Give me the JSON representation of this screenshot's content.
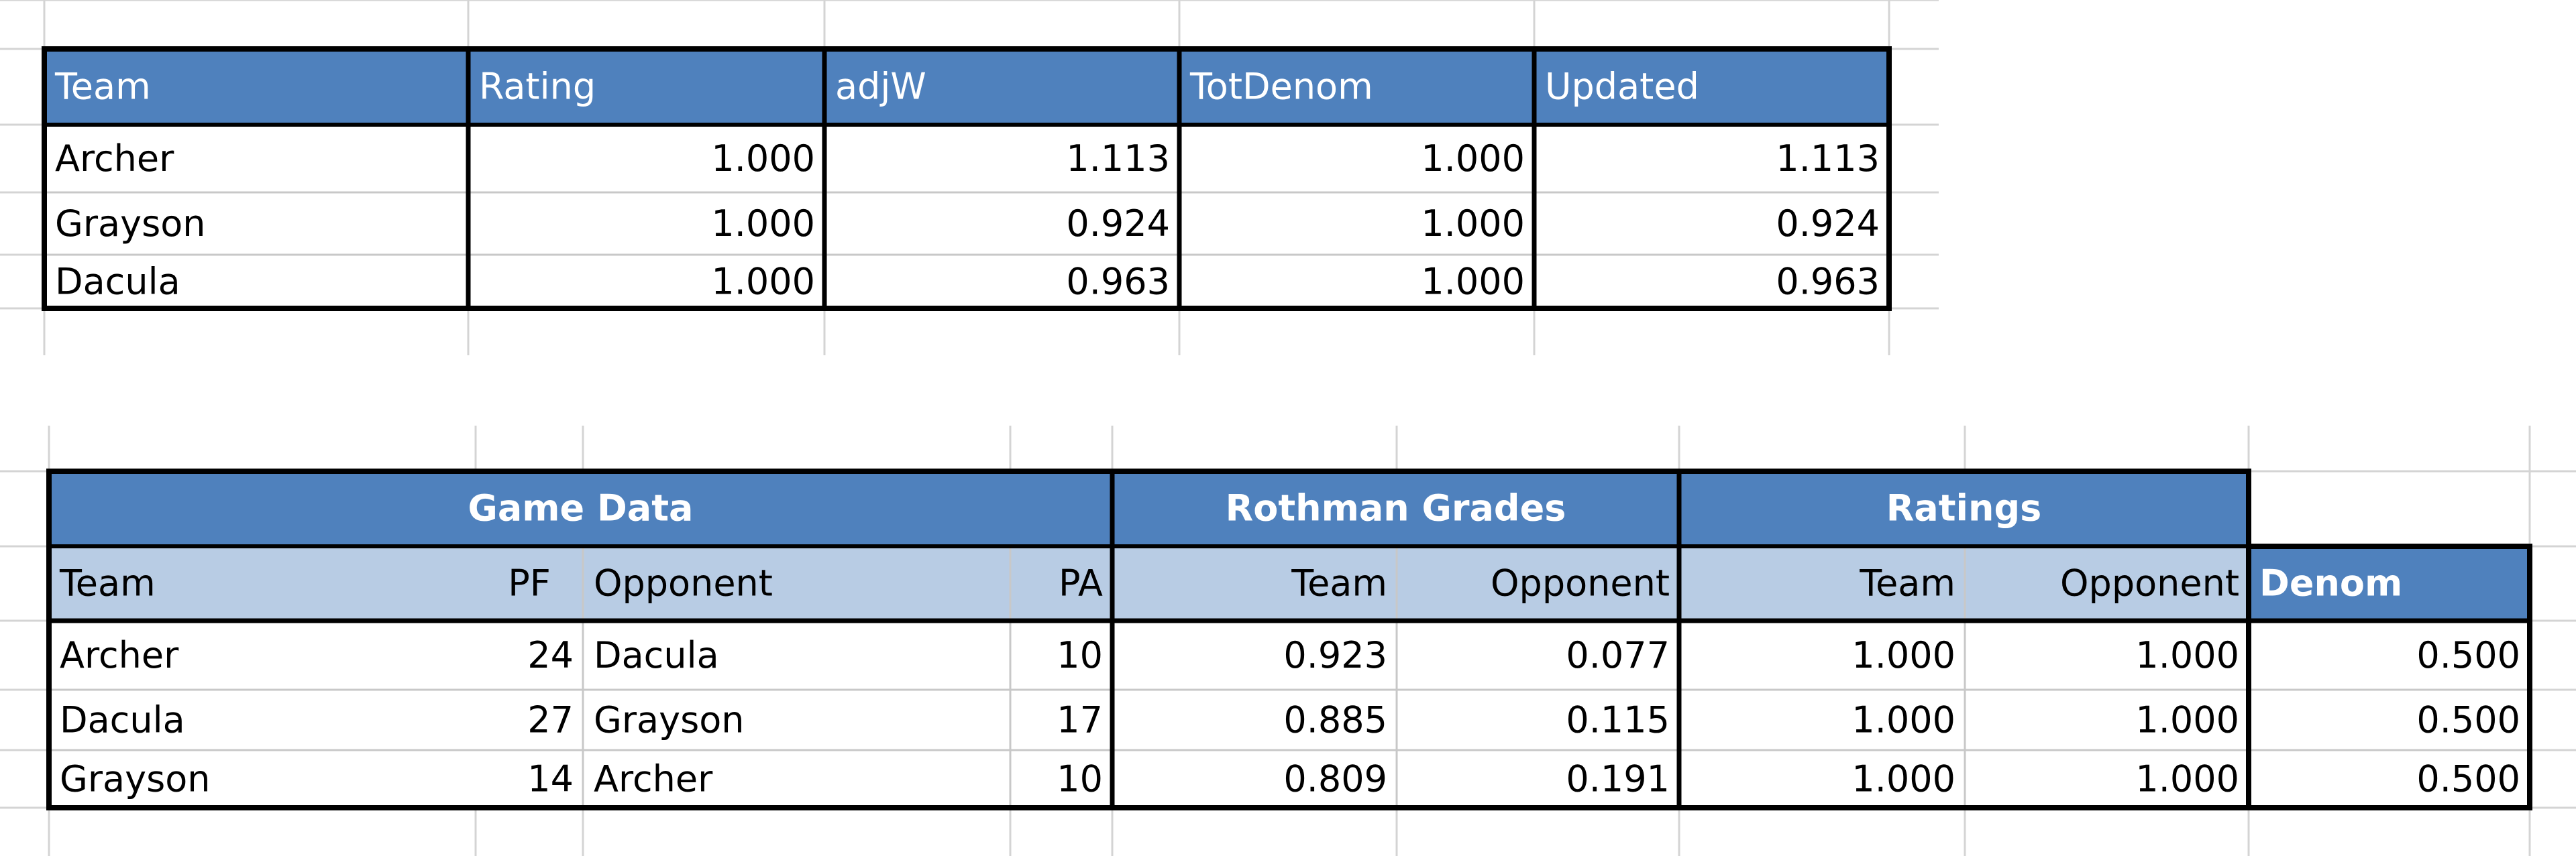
{
  "table1": {
    "columns": [
      "Team",
      "Rating",
      "adjW",
      "TotDenom",
      "Updated"
    ],
    "rows": [
      [
        "Archer",
        "1.000",
        "1.113",
        "1.000",
        "1.113"
      ],
      [
        "Grayson",
        "1.000",
        "0.924",
        "1.000",
        "0.924"
      ],
      [
        "Dacula",
        "1.000",
        "0.963",
        "1.000",
        "0.963"
      ]
    ]
  },
  "table2": {
    "groups": [
      "Game Data",
      "Rothman Grades",
      "Ratings"
    ],
    "columns": [
      "Team",
      "PF",
      "Opponent",
      "PA",
      "Team",
      "Opponent",
      "Team",
      "Opponent",
      "Denom"
    ],
    "rows": [
      [
        "Archer",
        "24",
        "Dacula",
        "10",
        "0.923",
        "0.077",
        "1.000",
        "1.000",
        "0.500"
      ],
      [
        "Dacula",
        "27",
        "Grayson",
        "17",
        "0.885",
        "0.115",
        "1.000",
        "1.000",
        "0.500"
      ],
      [
        "Grayson",
        "14",
        "Archer",
        "10",
        "0.809",
        "0.191",
        "1.000",
        "1.000",
        "0.500"
      ]
    ]
  }
}
